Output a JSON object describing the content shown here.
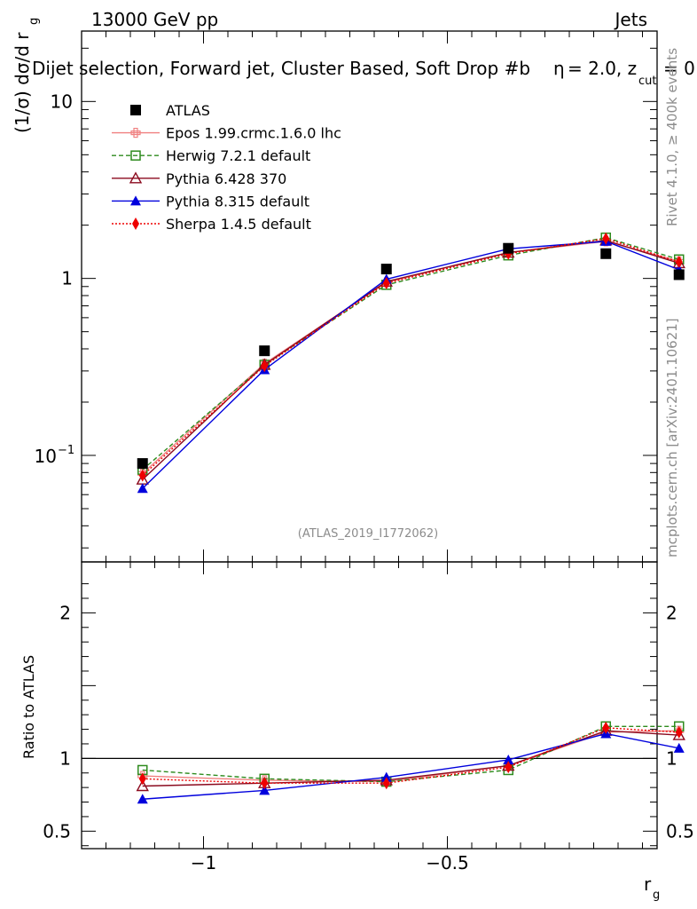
{
  "header": {
    "beam_label": "13000 GeV pp",
    "process_label": "Jets",
    "selection_title": "Dijet selection, Forward jet, Cluster Based, Soft Drop #b",
    "beta_label": "= 2.0, z",
    "zcut_sub": "cut",
    "zcut_tail": "= 0.",
    "beta_symbol": "η"
  },
  "side_labels": {
    "rivet": "Rivet 4.1.0, ≥ 400k events",
    "mcplots": "mcplots.cern.ch [arXiv:2401.10621]"
  },
  "watermark": "(ATLAS_2019_I1772062)",
  "axes": {
    "main_ylabel_prefix": "(1/σ) dσ/d r",
    "main_ylabel_sub": "g",
    "ratio_ylabel": "Ratio to ATLAS",
    "xlabel": "r",
    "xlabel_sub": "g",
    "main_yticks": [
      {
        "value": 0.1,
        "base": "10",
        "exp": "−1"
      },
      {
        "value": 1,
        "label": "1"
      },
      {
        "value": 10,
        "label": "10"
      }
    ],
    "ratio_yticks": [
      {
        "value": 0.5,
        "label": "0.5"
      },
      {
        "value": 1,
        "label": "1"
      },
      {
        "value": 2,
        "label": "2"
      }
    ],
    "xticks": [
      {
        "value": -1,
        "label": "−1"
      },
      {
        "value": -0.5,
        "label": "−0.5"
      }
    ]
  },
  "chart_data": {
    "type": "line",
    "title": "Dijet selection, Forward jet, Cluster Based, Soft Drop",
    "xlabel": "r_g",
    "ylabel": "(1/σ) dσ/d r_g",
    "ratio_ylabel": "Ratio to ATLAS",
    "xlim": [
      -1.25,
      -0.07
    ],
    "ylim": [
      0.025,
      25
    ],
    "yscale": "log",
    "ratio_ylim": [
      0.38,
      2.35
    ],
    "x": [
      -1.125,
      -0.875,
      -0.625,
      -0.375,
      -0.175,
      -0.025
    ],
    "legend_position": "top-left",
    "series": [
      {
        "name": "ATLAS",
        "color": "#000000",
        "marker": "square",
        "line": "none",
        "x": [
          -1.125,
          -0.875,
          -0.625,
          -0.375,
          -0.175,
          -0.025
        ],
        "values": [
          0.09,
          0.39,
          1.13,
          1.48,
          1.38,
          1.05
        ],
        "ratio": [
          1,
          1,
          1,
          1,
          1,
          1
        ]
      },
      {
        "name": "Epos 1.99.crmc.1.6.0 lhc",
        "color": "#f08080",
        "marker": "cross",
        "line": "solid",
        "x": [
          -1.125,
          -0.875,
          -0.625,
          -0.375,
          -0.175,
          -0.025
        ],
        "values": [
          0.079,
          0.33,
          0.95,
          1.4,
          1.62,
          1.25
        ],
        "ratio": [
          0.88,
          0.85,
          0.84,
          0.95,
          1.18,
          1.19
        ]
      },
      {
        "name": "Herwig 7.2.1 default",
        "color": "#2e8b1e",
        "marker": "open-square",
        "line": "dashed",
        "x": [
          -1.125,
          -0.875,
          -0.625,
          -0.375,
          -0.175,
          -0.025
        ],
        "values": [
          0.083,
          0.325,
          0.92,
          1.35,
          1.7,
          1.28
        ],
        "ratio": [
          0.92,
          0.86,
          0.84,
          0.92,
          1.22,
          1.22
        ]
      },
      {
        "name": "Pythia 6.428 370",
        "color": "#8b0a1e",
        "marker": "open-triangle",
        "line": "solid",
        "x": [
          -1.125,
          -0.875,
          -0.625,
          -0.375,
          -0.175,
          -0.025
        ],
        "values": [
          0.073,
          0.325,
          0.96,
          1.4,
          1.64,
          1.22
        ],
        "ratio": [
          0.81,
          0.83,
          0.85,
          0.95,
          1.19,
          1.16
        ]
      },
      {
        "name": "Pythia 8.315 default",
        "color": "#0000dd",
        "marker": "triangle",
        "line": "solid",
        "x": [
          -1.125,
          -0.875,
          -0.625,
          -0.375,
          -0.175,
          -0.025
        ],
        "values": [
          0.065,
          0.305,
          0.99,
          1.47,
          1.62,
          1.12
        ],
        "ratio": [
          0.72,
          0.78,
          0.87,
          0.99,
          1.17,
          1.07
        ]
      },
      {
        "name": "Sherpa 1.4.5 default",
        "color": "#ee0000",
        "marker": "diamond",
        "line": "dotted",
        "x": [
          -1.125,
          -0.875,
          -0.625,
          -0.375,
          -0.175,
          -0.025
        ],
        "values": [
          0.077,
          0.32,
          0.94,
          1.38,
          1.68,
          1.24
        ],
        "ratio": [
          0.86,
          0.83,
          0.83,
          0.94,
          1.21,
          1.18
        ]
      }
    ]
  }
}
